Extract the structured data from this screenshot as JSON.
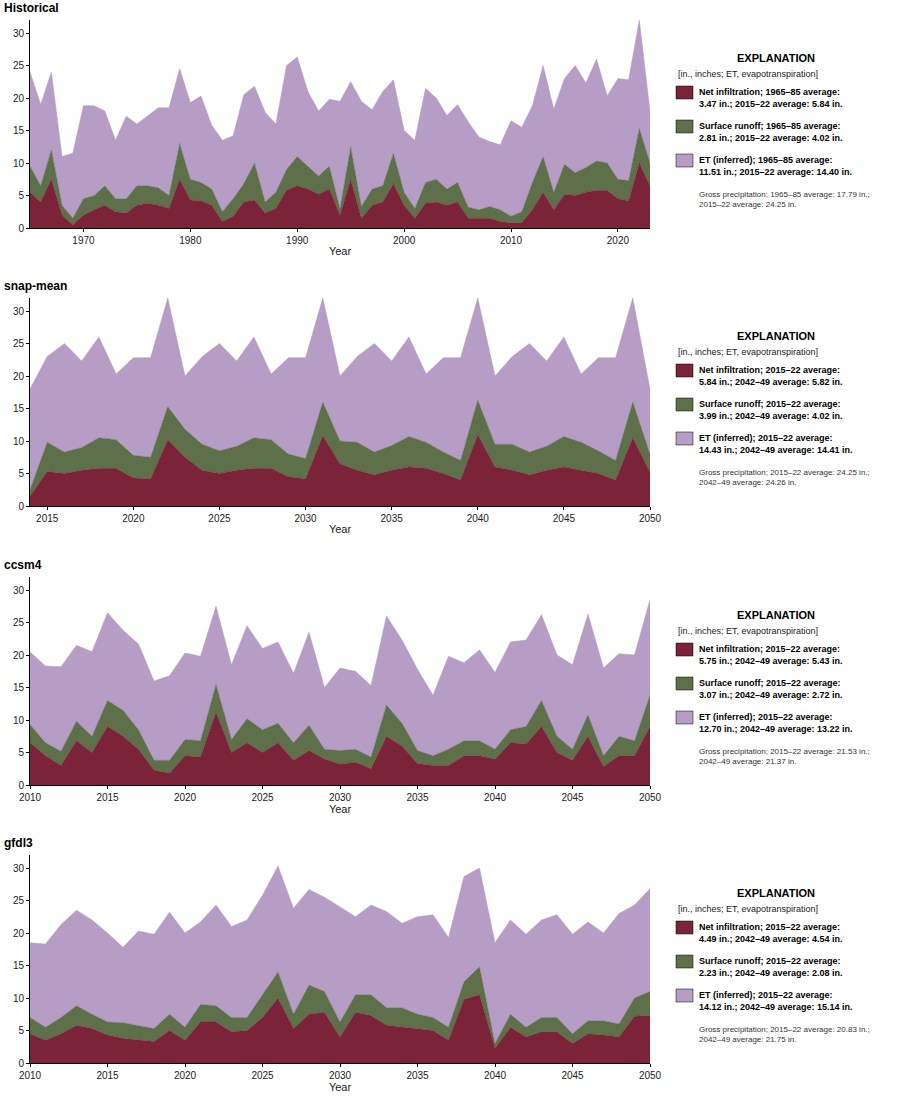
{
  "chart_data": [
    {
      "type": "area",
      "title": "Historical",
      "x_label": "Year",
      "stacked": true,
      "grid": false,
      "xlim": [
        1965,
        2023
      ],
      "xticks": [
        1970,
        1980,
        1990,
        2000,
        2010,
        2020
      ],
      "ylim": [
        0,
        32
      ],
      "yticks": [
        0,
        5,
        10,
        15,
        20,
        25,
        30
      ],
      "legend_title": "EXPLANATION",
      "legend_subtitle": "[in., inches; ET, evapotranspiration]",
      "note": "Gross precipitation; 1965–85 average: 17.79 in.; 2015–22 average: 24.25 in.",
      "x": [
        1965,
        1966,
        1967,
        1968,
        1969,
        1970,
        1971,
        1972,
        1973,
        1974,
        1975,
        1976,
        1977,
        1978,
        1979,
        1980,
        1981,
        1982,
        1983,
        1984,
        1985,
        1986,
        1987,
        1988,
        1989,
        1990,
        1991,
        1992,
        1993,
        1994,
        1995,
        1996,
        1997,
        1998,
        1999,
        2000,
        2001,
        2002,
        2003,
        2004,
        2005,
        2006,
        2007,
        2008,
        2009,
        2010,
        2011,
        2012,
        2013,
        2014,
        2015,
        2016,
        2017,
        2018,
        2019,
        2020,
        2021,
        2022,
        2023
      ],
      "series": [
        {
          "name": "Net infiltration; 1965–85 average: 3.47 in.; 2015–22 average: 5.84 in.",
          "color": "#7b2338",
          "values": [
            5.5,
            4,
            7.5,
            2,
            0.5,
            2,
            2.8,
            3.5,
            2.5,
            2.3,
            3.5,
            3.8,
            3.5,
            3,
            7.5,
            4.3,
            4.2,
            3.5,
            1,
            1.8,
            4,
            4.3,
            2.3,
            3,
            5.8,
            6.5,
            6,
            5.2,
            6,
            2,
            7.5,
            1.5,
            3.5,
            4,
            6.8,
            3.5,
            1.5,
            3.8,
            4,
            3.5,
            4,
            1.5,
            1.5,
            1.5,
            1,
            0.8,
            0.8,
            2.8,
            5.5,
            2.8,
            5.2,
            5,
            5.5,
            5.8,
            5.8,
            4.5,
            4.2,
            10,
            6.5
          ]
        },
        {
          "name": "Surface runoff; 1965–85 average: 2.81 in.; 2015–22 average: 4.02 in.",
          "color": "#5e7049",
          "values": [
            4,
            2.5,
            4.5,
            1.5,
            1,
            2.5,
            2.2,
            3,
            2,
            2.2,
            3,
            2.7,
            2.7,
            2,
            5.5,
            3.2,
            2.8,
            2.5,
            1.5,
            2.7,
            2.8,
            5.7,
            1.7,
            2.5,
            3.2,
            4.5,
            3.5,
            2.8,
            3.5,
            1,
            5,
            1.8,
            2.5,
            2.5,
            4.7,
            2,
            1.5,
            3.2,
            3.5,
            2.5,
            3,
            1.7,
            1.3,
            1.8,
            1.8,
            1,
            1.7,
            4.2,
            5.5,
            2.7,
            4.6,
            3.5,
            3.8,
            4.5,
            4.2,
            3,
            3.1,
            5.3,
            3.5
          ]
        },
        {
          "name": "ET (inferred); 1965–85 average: 11.51 in.; 2015–22 average: 14.40 in.",
          "color": "#b59dc6",
          "values": [
            14.5,
            12.5,
            12,
            7.5,
            10,
            14.3,
            13.8,
            11.5,
            9,
            12.7,
            9.5,
            10.8,
            12.3,
            13.5,
            11.5,
            11.8,
            13.3,
            9.8,
            11,
            9.7,
            13.7,
            11.8,
            13.8,
            10.5,
            16,
            15.3,
            11.5,
            10,
            10.3,
            16.5,
            10,
            16.2,
            12.2,
            14.5,
            11.3,
            9.5,
            10.5,
            14.5,
            12.5,
            11.3,
            12,
            13.1,
            11.2,
            10,
            10,
            14.7,
            13,
            11.8,
            14,
            12.8,
            13.2,
            16.5,
            13,
            15.7,
            10.3,
            15.5,
            15.5,
            16.7,
            8
          ]
        }
      ]
    },
    {
      "type": "area",
      "title": "snap-mean",
      "x_label": "Year",
      "stacked": true,
      "grid": false,
      "xlim": [
        2014,
        2050
      ],
      "xticks": [
        2015,
        2020,
        2025,
        2030,
        2035,
        2040,
        2045,
        2050
      ],
      "ylim": [
        0,
        32
      ],
      "yticks": [
        0,
        5,
        10,
        15,
        20,
        25,
        30
      ],
      "legend_title": "EXPLANATION",
      "legend_subtitle": "[in., inches; ET, evapotranspiration]",
      "note": "Gross precipitation; 2015–22 average: 24.25 in.; 2042–49 average: 24.26 in.",
      "x": [
        2014,
        2015,
        2016,
        2017,
        2018,
        2019,
        2020,
        2021,
        2022,
        2023,
        2024,
        2025,
        2026,
        2027,
        2028,
        2029,
        2030,
        2031,
        2032,
        2033,
        2034,
        2035,
        2036,
        2037,
        2038,
        2039,
        2040,
        2041,
        2042,
        2043,
        2044,
        2045,
        2046,
        2047,
        2048,
        2049,
        2050
      ],
      "series": [
        {
          "name": "Net infiltration; 2015–22 average: 5.84 in.; 2042–49 average: 5.82 in.",
          "color": "#7b2338",
          "values": [
            1.5,
            5.3,
            5,
            5.5,
            5.8,
            5.8,
            4.3,
            4.2,
            10.2,
            7.5,
            5.5,
            5,
            5.5,
            5.8,
            5.8,
            4.5,
            4.2,
            10.8,
            6.5,
            5.5,
            4.8,
            5.5,
            6,
            5.8,
            5,
            4,
            11,
            6,
            5.5,
            4.8,
            5.5,
            6,
            5.5,
            5,
            4,
            10.5,
            5.2
          ]
        },
        {
          "name": "Surface runoff; 2015–22 average: 3.99 in.; 2042–49 average: 4.02 in.",
          "color": "#5e7049",
          "values": [
            1,
            4.5,
            3.3,
            3.5,
            4.7,
            4.4,
            3.5,
            3.3,
            5.1,
            4.3,
            4,
            3.5,
            3.7,
            4.7,
            4.4,
            3.5,
            3.1,
            5.2,
            3.5,
            4.3,
            3.5,
            3.8,
            4.7,
            4,
            3.3,
            3,
            5.3,
            3.5,
            4,
            3.5,
            3.7,
            4.7,
            4.3,
            3.5,
            3,
            5.5,
            2.8
          ]
        },
        {
          "name": "ET (inferred); 2015–22 average: 14.43 in.; 2042–49 average: 14.41 in.",
          "color": "#b59dc6",
          "values": [
            15.5,
            13.2,
            16.7,
            13.3,
            15.5,
            10.1,
            15,
            15.3,
            16.7,
            8.2,
            13.5,
            16.5,
            13.1,
            15.5,
            10.1,
            14.8,
            15.5,
            16,
            10,
            13.2,
            16.7,
            13,
            15.3,
            10.5,
            14.5,
            15.8,
            15.7,
            10.5,
            13.5,
            16.7,
            13.1,
            15.3,
            10.5,
            14.3,
            15.8,
            16,
            10
          ]
        }
      ]
    },
    {
      "type": "area",
      "title": "ccsm4",
      "x_label": "Year",
      "stacked": true,
      "grid": false,
      "xlim": [
        2010,
        2050
      ],
      "xticks": [
        2010,
        2015,
        2020,
        2025,
        2030,
        2035,
        2040,
        2045,
        2050
      ],
      "ylim": [
        0,
        32
      ],
      "yticks": [
        0,
        5,
        10,
        15,
        20,
        25,
        30
      ],
      "legend_title": "EXPLANATION",
      "legend_subtitle": "[in., inches; ET, evapotranspiration]",
      "note": "Gross precipitation; 2015–22 average: 21.53 in.; 2042–49 average: 21.37 in.",
      "x": [
        2010,
        2011,
        2012,
        2013,
        2014,
        2015,
        2016,
        2017,
        2018,
        2019,
        2020,
        2021,
        2022,
        2023,
        2024,
        2025,
        2026,
        2027,
        2028,
        2029,
        2030,
        2031,
        2032,
        2033,
        2034,
        2035,
        2036,
        2037,
        2038,
        2039,
        2040,
        2041,
        2042,
        2043,
        2044,
        2045,
        2046,
        2047,
        2048,
        2049,
        2050
      ],
      "series": [
        {
          "name": "Net infiltration; 2015–22 average: 5.75 in.; 2042–49 average: 5.43 in.",
          "color": "#7b2338",
          "values": [
            6.5,
            4.5,
            3,
            6.8,
            5,
            9,
            7.5,
            5.5,
            2.3,
            1.8,
            4.5,
            4.3,
            11.2,
            5,
            6.5,
            5,
            6.5,
            3.8,
            5.3,
            4,
            3.2,
            3.5,
            2.5,
            7.5,
            6,
            3.3,
            3,
            3,
            4.5,
            4.5,
            4,
            6.5,
            6.3,
            9,
            5,
            3.8,
            7.5,
            2.8,
            4.5,
            4.5,
            9
          ]
        },
        {
          "name": "Surface runoff; 2015–22 average: 3.07 in.; 2042–49 average: 2.72 in.",
          "color": "#5e7049",
          "values": [
            2.8,
            2,
            2.2,
            3,
            2.5,
            4,
            4,
            3,
            1.5,
            2,
            2.5,
            2.5,
            4.3,
            2,
            3.7,
            3.5,
            3,
            2.7,
            3.9,
            1.5,
            2.1,
            2,
            1.8,
            4.8,
            3.5,
            2,
            1.5,
            2.5,
            2.3,
            2.3,
            1.5,
            2,
            2.7,
            4,
            2.5,
            1.7,
            3.3,
            1.7,
            3,
            2.3,
            4.8
          ]
        },
        {
          "name": "ET (inferred); 2015–22 average: 12.70 in.; 2042–49 average: 13.22 in.",
          "color": "#b59dc6",
          "values": [
            11.2,
            11.8,
            13,
            11.7,
            13,
            13.5,
            12.3,
            13.2,
            12.2,
            13,
            13.3,
            13,
            12,
            11.5,
            14.3,
            12.5,
            12.5,
            10.7,
            14.3,
            9.5,
            12.7,
            12,
            11,
            13.7,
            12.8,
            12.5,
            9.3,
            14.3,
            12,
            14,
            11.8,
            13.5,
            13.3,
            13.2,
            12.5,
            13,
            15.5,
            13.5,
            12.7,
            13.2,
            14.7
          ]
        }
      ]
    },
    {
      "type": "area",
      "title": "gfdl3",
      "x_label": "Year",
      "stacked": true,
      "grid": false,
      "xlim": [
        2010,
        2050
      ],
      "xticks": [
        2010,
        2015,
        2020,
        2025,
        2030,
        2035,
        2040,
        2045,
        2050
      ],
      "ylim": [
        0,
        32
      ],
      "yticks": [
        0,
        5,
        10,
        15,
        20,
        25,
        30
      ],
      "legend_title": "EXPLANATION",
      "legend_subtitle": "[in., inches; ET, evapotranspiration]",
      "note": "Gross precipitation; 2015–22 average: 20.83 in.; 2042–49 average: 21.75 in.",
      "x": [
        2010,
        2011,
        2012,
        2013,
        2014,
        2015,
        2016,
        2017,
        2018,
        2019,
        2020,
        2021,
        2022,
        2023,
        2024,
        2025,
        2026,
        2027,
        2028,
        2029,
        2030,
        2031,
        2032,
        2033,
        2034,
        2035,
        2036,
        2037,
        2038,
        2039,
        2040,
        2041,
        2042,
        2043,
        2044,
        2045,
        2046,
        2047,
        2048,
        2049,
        2050
      ],
      "series": [
        {
          "name": "Net infiltration; 2015–22 average: 4.49 in.; 2042–49 average: 4.54 in.",
          "color": "#7b2338",
          "values": [
            4.5,
            3.5,
            4.5,
            5.8,
            5.3,
            4.3,
            3.8,
            3.5,
            3.3,
            5,
            3.5,
            6.3,
            6.3,
            4.8,
            5,
            7,
            10,
            5.3,
            7.5,
            7.8,
            4,
            7.8,
            7.3,
            5.8,
            5.5,
            5.3,
            5,
            3.5,
            9.8,
            10.5,
            2.3,
            5.5,
            4,
            4.8,
            4.8,
            3,
            4.5,
            4.3,
            4,
            7.2,
            7.3
          ]
        },
        {
          "name": "Surface runoff; 2015–22 average: 2.23 in.; 2042–49 average: 2.08 in.",
          "color": "#5e7049",
          "values": [
            2.5,
            2,
            2.5,
            3,
            2.2,
            2,
            2.4,
            2.3,
            2,
            2.5,
            2,
            2.7,
            2.5,
            2.2,
            2,
            3.5,
            4,
            2.2,
            4.5,
            3.2,
            2.3,
            2.7,
            3.2,
            2.7,
            3,
            2.2,
            2,
            2,
            2.7,
            4.3,
            0.7,
            2,
            1.5,
            2.2,
            2.2,
            1.5,
            2,
            2.2,
            2,
            2.8,
            3.7
          ]
        },
        {
          "name": "ET (inferred); 2015–22 average: 14.12 in.; 2042–49 average: 15.14 in.",
          "color": "#b59dc6",
          "values": [
            11.5,
            12.8,
            14.3,
            14.7,
            14.5,
            13.7,
            11.6,
            14.5,
            14.5,
            15.7,
            14.5,
            12.7,
            15.5,
            14,
            15,
            15.3,
            16.3,
            16.3,
            14.7,
            14.5,
            17.7,
            12,
            13.8,
            14.8,
            13,
            15,
            15.8,
            13.8,
            16.2,
            15.2,
            15.5,
            14.5,
            14.3,
            15,
            15.8,
            15.3,
            15.2,
            13.5,
            17,
            14.3,
            15.8
          ]
        }
      ]
    }
  ]
}
